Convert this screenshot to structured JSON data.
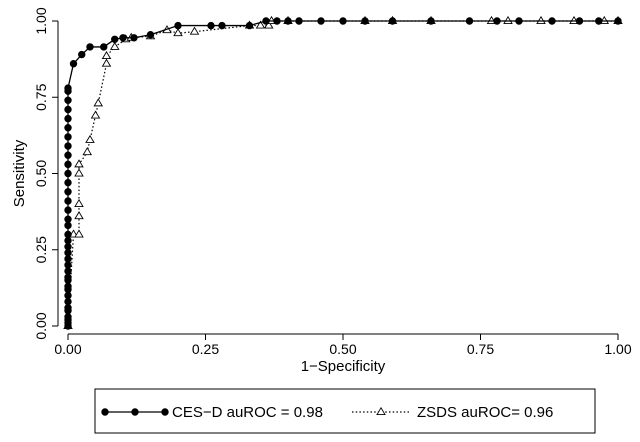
{
  "chart_data": {
    "type": "line",
    "xlabel": "1−Specificity",
    "ylabel": "Sensitivity",
    "xlim": [
      0,
      1
    ],
    "ylim": [
      0,
      1
    ],
    "xticks": [
      0,
      0.25,
      0.5,
      0.75,
      1
    ],
    "xtick_labels": [
      "0.00",
      "0.25",
      "0.50",
      "0.75",
      "1.00"
    ],
    "yticks": [
      0,
      0.25,
      0.5,
      0.75,
      1
    ],
    "ytick_labels": [
      "0.00",
      "0.25",
      "0.50",
      "0.75",
      "1.00"
    ],
    "grid": false,
    "legend_position": "bottom",
    "legend": [
      "CES−D auROC = 0.98",
      "ZSDS auROC= 0.96"
    ],
    "series": [
      {
        "name": "CES−D auROC = 0.98",
        "line_style": "solid",
        "marker": "filled-circle",
        "color": "#000000",
        "points": [
          [
            0,
            0
          ],
          [
            0,
            0.01
          ],
          [
            0,
            0.02
          ],
          [
            0,
            0.03
          ],
          [
            0,
            0.05
          ],
          [
            0,
            0.06
          ],
          [
            0,
            0.08
          ],
          [
            0,
            0.1
          ],
          [
            0,
            0.12
          ],
          [
            0,
            0.13
          ],
          [
            0,
            0.15
          ],
          [
            0,
            0.16
          ],
          [
            0,
            0.18
          ],
          [
            0,
            0.2
          ],
          [
            0,
            0.22
          ],
          [
            0,
            0.24
          ],
          [
            0,
            0.26
          ],
          [
            0,
            0.28
          ],
          [
            0,
            0.3
          ],
          [
            0,
            0.33
          ],
          [
            0,
            0.35
          ],
          [
            0,
            0.38
          ],
          [
            0,
            0.41
          ],
          [
            0,
            0.44
          ],
          [
            0,
            0.47
          ],
          [
            0,
            0.5
          ],
          [
            0,
            0.53
          ],
          [
            0,
            0.56
          ],
          [
            0,
            0.59
          ],
          [
            0,
            0.62
          ],
          [
            0,
            0.65
          ],
          [
            0,
            0.68
          ],
          [
            0,
            0.71
          ],
          [
            0,
            0.74
          ],
          [
            0,
            0.77
          ],
          [
            0,
            0.78
          ],
          [
            0.01,
            0.86
          ],
          [
            0.025,
            0.89
          ],
          [
            0.04,
            0.915
          ],
          [
            0.065,
            0.915
          ],
          [
            0.085,
            0.94
          ],
          [
            0.1,
            0.945
          ],
          [
            0.12,
            0.945
          ],
          [
            0.15,
            0.955
          ],
          [
            0.2,
            0.985
          ],
          [
            0.26,
            0.985
          ],
          [
            0.28,
            0.985
          ],
          [
            0.33,
            0.985
          ],
          [
            0.36,
            1
          ],
          [
            0.38,
            1
          ],
          [
            0.4,
            1
          ],
          [
            0.42,
            1
          ],
          [
            0.46,
            1
          ],
          [
            0.5,
            1
          ],
          [
            0.54,
            1
          ],
          [
            0.59,
            1
          ],
          [
            0.66,
            1
          ],
          [
            0.73,
            1
          ],
          [
            0.78,
            1
          ],
          [
            0.82,
            1
          ],
          [
            0.88,
            1
          ],
          [
            0.93,
            1
          ],
          [
            0.965,
            1
          ],
          [
            1,
            1
          ]
        ]
      },
      {
        "name": "ZSDS auROC= 0.96",
        "line_style": "dotted",
        "marker": "hollow-triangle",
        "color": "#000000",
        "points": [
          [
            0,
            0
          ],
          [
            0.01,
            0.3
          ],
          [
            0.02,
            0.3
          ],
          [
            0.02,
            0.36
          ],
          [
            0.02,
            0.4
          ],
          [
            0.02,
            0.5
          ],
          [
            0.02,
            0.53
          ],
          [
            0.035,
            0.57
          ],
          [
            0.04,
            0.61
          ],
          [
            0.05,
            0.69
          ],
          [
            0.055,
            0.73
          ],
          [
            0.07,
            0.86
          ],
          [
            0.07,
            0.885
          ],
          [
            0.085,
            0.915
          ],
          [
            0.105,
            0.94
          ],
          [
            0.115,
            0.945
          ],
          [
            0.15,
            0.95
          ],
          [
            0.18,
            0.97
          ],
          [
            0.2,
            0.96
          ],
          [
            0.23,
            0.965
          ],
          [
            0.33,
            0.985
          ],
          [
            0.35,
            0.985
          ],
          [
            0.365,
            0.985
          ],
          [
            0.37,
            1
          ],
          [
            0.4,
            1
          ],
          [
            0.54,
            1
          ],
          [
            0.59,
            1
          ],
          [
            0.66,
            1
          ],
          [
            0.77,
            1
          ],
          [
            0.8,
            1
          ],
          [
            0.86,
            1
          ],
          [
            0.92,
            1
          ],
          [
            0.975,
            1
          ],
          [
            1,
            1
          ]
        ]
      }
    ]
  }
}
